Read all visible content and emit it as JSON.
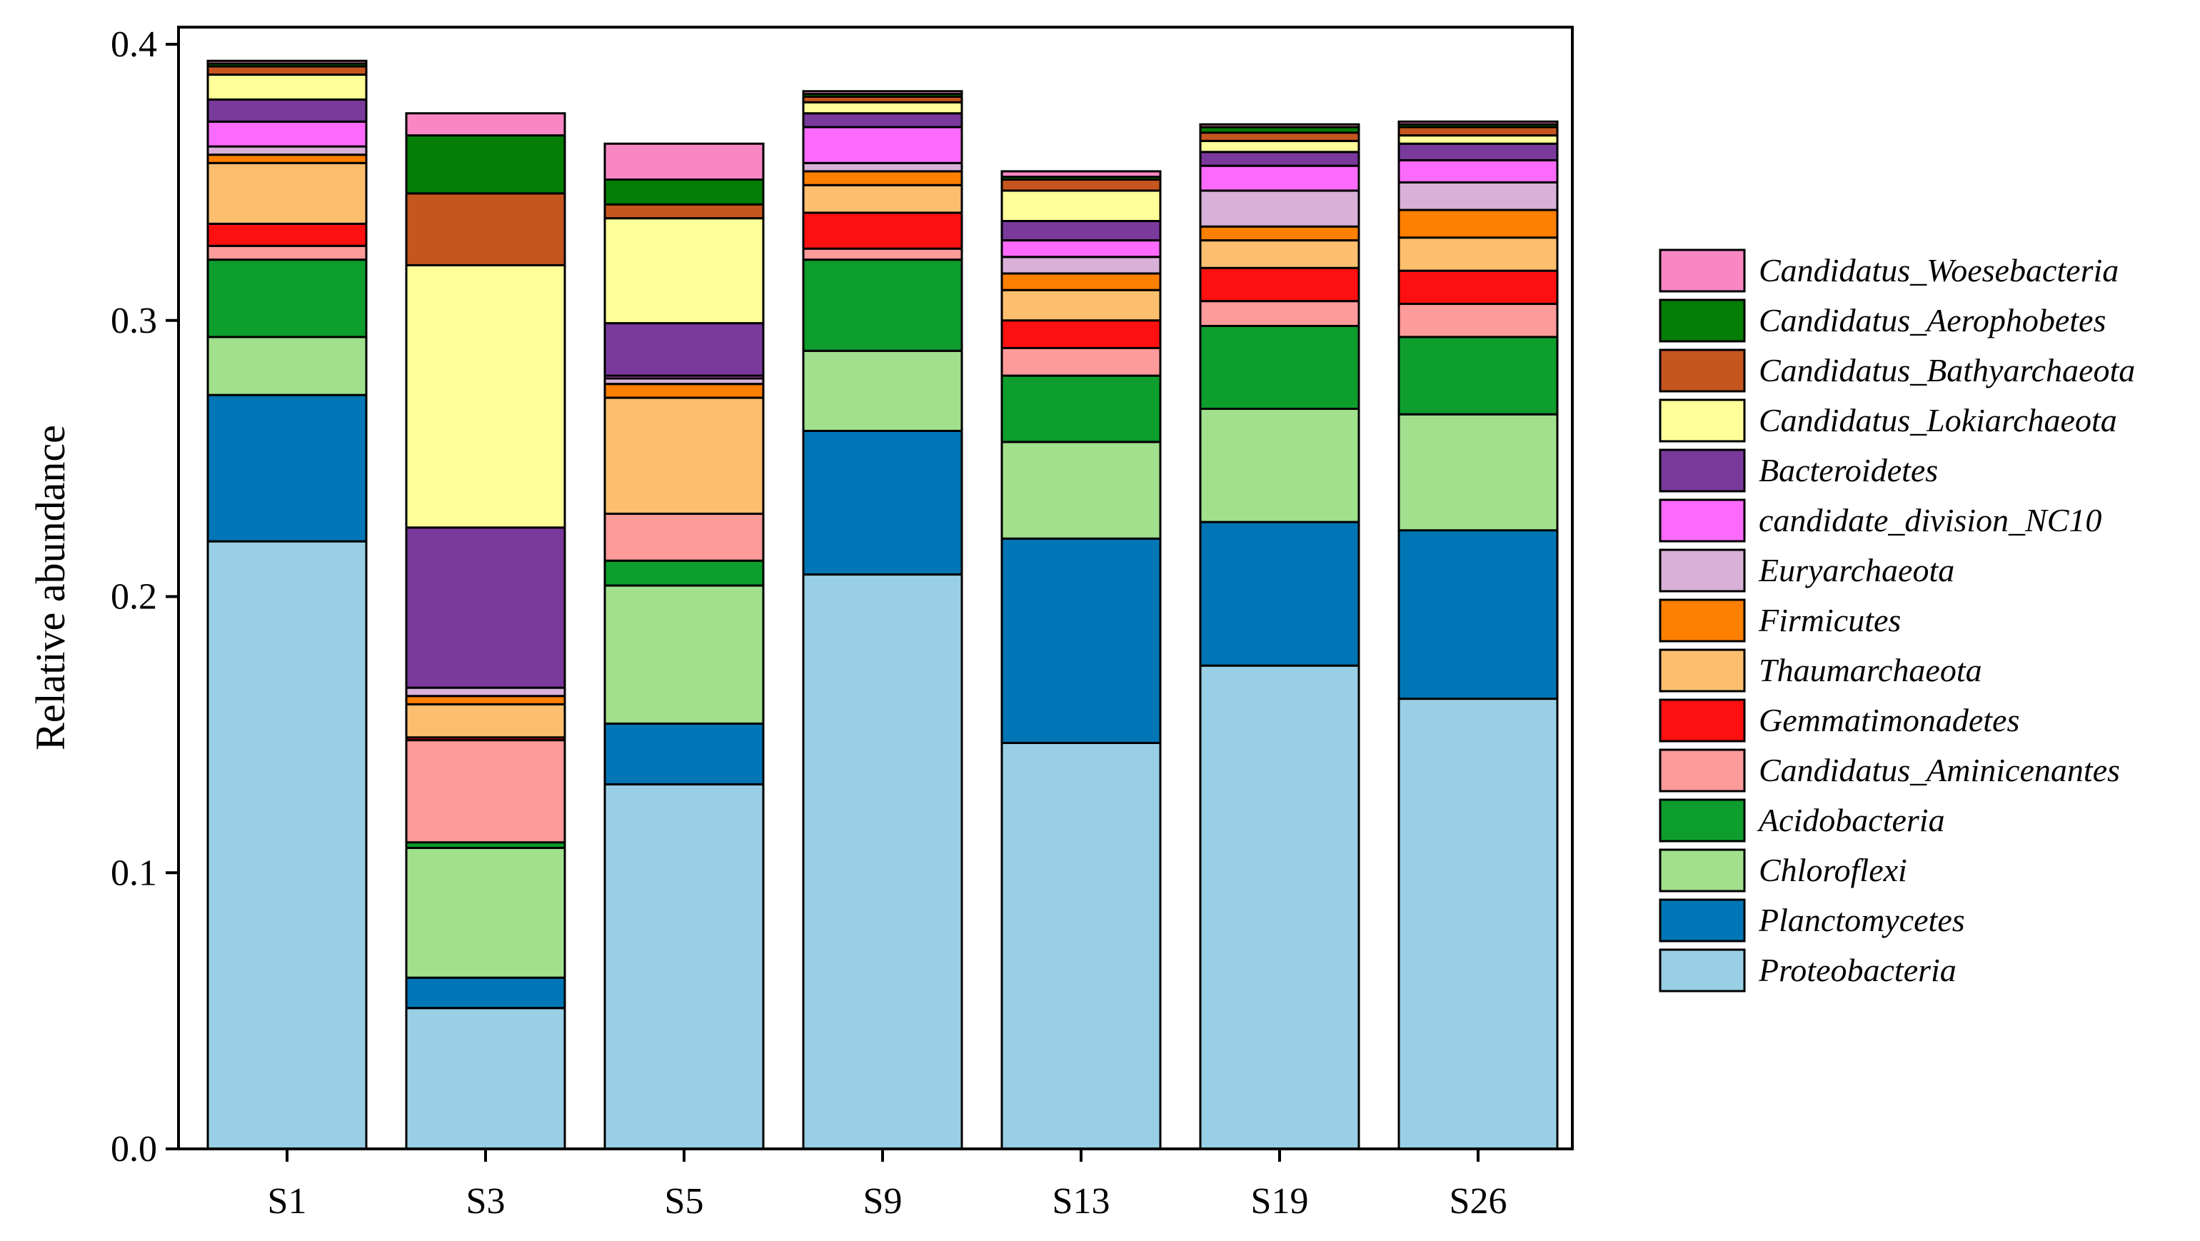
{
  "chart_data": {
    "type": "bar",
    "stacked": true,
    "title": "",
    "xlabel": "",
    "ylabel": "Relative abundance",
    "ylim": [
      0,
      0.4
    ],
    "yticks": [
      "0.0",
      "0.1",
      "0.2",
      "0.3",
      "0.4"
    ],
    "ytick_values": [
      0,
      0.1,
      0.2,
      0.3,
      0.4
    ],
    "categories": [
      "S1",
      "S3",
      "S5",
      "S9",
      "S13",
      "S19",
      "S26"
    ],
    "legend_position": "right",
    "series": [
      {
        "name": "Proteobacteria",
        "color": "#99CFE4",
        "values": [
          0.22,
          0.051,
          0.132,
          0.208,
          0.147,
          0.175,
          0.163
        ]
      },
      {
        "name": "Planctomycetes",
        "color": "#0076B6",
        "values": [
          0.053,
          0.011,
          0.022,
          0.052,
          0.074,
          0.052,
          0.061
        ]
      },
      {
        "name": "Chloroflexi",
        "color": "#A1E08D",
        "values": [
          0.021,
          0.047,
          0.05,
          0.029,
          0.035,
          0.041,
          0.042
        ]
      },
      {
        "name": "Acidobacteria",
        "color": "#0D9E2E",
        "values": [
          0.028,
          0.002,
          0.009,
          0.033,
          0.024,
          0.03,
          0.028
        ]
      },
      {
        "name": "Candidatus_Aminicenantes",
        "color": "#FD9A9A",
        "values": [
          0.005,
          0.037,
          0.017,
          0.004,
          0.01,
          0.009,
          0.012
        ]
      },
      {
        "name": "Gemmatimonadetes",
        "color": "#FF1010",
        "values": [
          0.008,
          0.001,
          0.0,
          0.013,
          0.01,
          0.012,
          0.012
        ]
      },
      {
        "name": "Thaumarchaeota",
        "color": "#FDBF6E",
        "values": [
          0.022,
          0.012,
          0.042,
          0.01,
          0.011,
          0.01,
          0.012
        ]
      },
      {
        "name": "Firmicutes",
        "color": "#FF7F00",
        "values": [
          0.003,
          0.003,
          0.005,
          0.005,
          0.006,
          0.005,
          0.01
        ]
      },
      {
        "name": "Euryarchaeota",
        "color": "#D8B0D8",
        "values": [
          0.003,
          0.003,
          0.002,
          0.003,
          0.006,
          0.013,
          0.01
        ]
      },
      {
        "name": "candidate_division_NC10",
        "color": "#FB6AFB",
        "values": [
          0.009,
          0.0,
          0.001,
          0.013,
          0.006,
          0.009,
          0.008
        ]
      },
      {
        "name": "Bacteroidetes",
        "color": "#7A3A9C",
        "values": [
          0.008,
          0.058,
          0.019,
          0.005,
          0.007,
          0.005,
          0.006
        ]
      },
      {
        "name": "Candidatus_Lokiarchaeota",
        "color": "#FFFF99",
        "values": [
          0.009,
          0.095,
          0.038,
          0.004,
          0.011,
          0.004,
          0.003
        ]
      },
      {
        "name": "Candidatus_Bathyarchaeota",
        "color": "#C6561F",
        "values": [
          0.003,
          0.026,
          0.005,
          0.002,
          0.004,
          0.003,
          0.003
        ]
      },
      {
        "name": "Candidatus_Aerophobetes",
        "color": "#057E05",
        "values": [
          0.001,
          0.021,
          0.009,
          0.001,
          0.001,
          0.002,
          0.001
        ]
      },
      {
        "name": "Candidatus_Woesebacteria",
        "color": "#F987C4",
        "values": [
          0.001,
          0.008,
          0.013,
          0.001,
          0.002,
          0.001,
          0.001
        ]
      }
    ]
  }
}
